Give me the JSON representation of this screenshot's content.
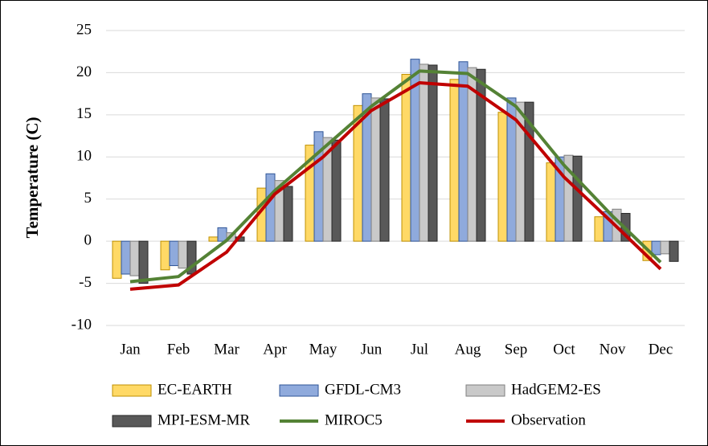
{
  "chart_data": {
    "type": "bar",
    "ylabel": "Temperature (C)",
    "categories": [
      "Jan",
      "Feb",
      "Mar",
      "Apr",
      "May",
      "Jun",
      "Jul",
      "Aug",
      "Sep",
      "Oct",
      "Nov",
      "Dec"
    ],
    "series": [
      {
        "name": "EC-EARTH",
        "type": "bar",
        "color": "#ffd966",
        "edge_color": "#bf9000",
        "values": [
          -4.4,
          -3.4,
          0.5,
          6.3,
          11.4,
          16.1,
          19.8,
          19.2,
          15.3,
          9.3,
          2.9,
          -2.3
        ]
      },
      {
        "name": "GFDL-CM3",
        "type": "bar",
        "color": "#8faadc",
        "edge_color": "#2f5597",
        "values": [
          -3.9,
          -2.9,
          1.6,
          8.0,
          13.0,
          17.5,
          21.6,
          21.3,
          17.0,
          10.0,
          3.5,
          -1.6
        ]
      },
      {
        "name": "HadGEM2-ES",
        "type": "bar",
        "color": "#c9c9c9",
        "edge_color": "#7f7f7f",
        "values": [
          -4.1,
          -3.2,
          1.0,
          7.2,
          12.3,
          17.0,
          21.0,
          20.6,
          16.5,
          10.2,
          3.8,
          -1.5
        ]
      },
      {
        "name": "MPI-ESM-MR",
        "type": "bar",
        "color": "#595959",
        "edge_color": "#262626",
        "values": [
          -5.0,
          -3.9,
          0.5,
          6.5,
          12.0,
          16.9,
          20.9,
          20.4,
          16.5,
          10.1,
          3.3,
          -2.4
        ]
      },
      {
        "name": "MIROC5",
        "type": "line",
        "color": "#548235",
        "values": [
          -4.8,
          -4.2,
          0.1,
          6.0,
          11.0,
          16.0,
          20.2,
          19.9,
          16.0,
          9.0,
          3.0,
          -2.5
        ]
      },
      {
        "name": "Observation",
        "type": "line",
        "color": "#c00000",
        "values": [
          -5.7,
          -5.2,
          -1.3,
          5.6,
          10.0,
          15.5,
          18.8,
          18.4,
          14.4,
          7.6,
          2.2,
          -3.3
        ]
      }
    ],
    "ylim": [
      -10,
      25
    ],
    "yticks": [
      -10,
      -5,
      0,
      5,
      10,
      15,
      20,
      25
    ],
    "grid": true,
    "legend": "bottom"
  }
}
